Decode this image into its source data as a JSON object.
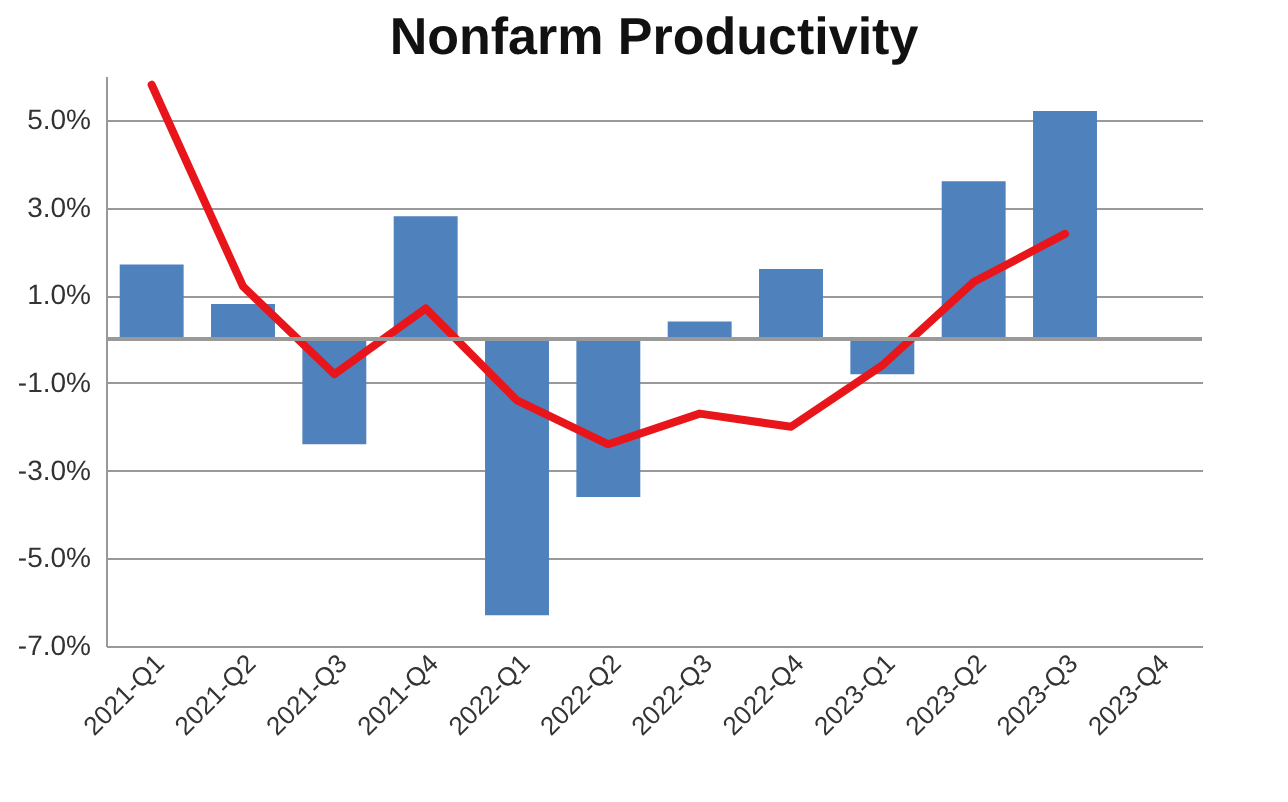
{
  "chart_data": {
    "type": "bar",
    "title": "Nonfarm Productivity",
    "categories": [
      "2021-Q1",
      "2021-Q2",
      "2021-Q3",
      "2021-Q4",
      "2022-Q1",
      "2022-Q2",
      "2022-Q3",
      "2022-Q4",
      "2023-Q1",
      "2023-Q2",
      "2023-Q3",
      "2023-Q4"
    ],
    "series": [
      {
        "color": "#4f81bd",
        "values": [
          1.7,
          0.8,
          -2.4,
          2.8,
          -6.3,
          -3.6,
          0.4,
          1.6,
          -0.8,
          3.6,
          5.2,
          null
        ]
      },
      {
        "type": "line",
        "color": "#e8161b",
        "values": [
          5.8,
          1.2,
          -0.8,
          0.7,
          -1.4,
          -2.4,
          -1.7,
          -2.0,
          -0.6,
          1.3,
          2.4,
          null
        ]
      }
    ],
    "ylim": [
      -7,
      6
    ],
    "yticks": [
      {
        "value": -7,
        "label": "-7.0%"
      },
      {
        "value": -5,
        "label": "-5.0%"
      },
      {
        "value": -3,
        "label": "-3.0%"
      },
      {
        "value": -1,
        "label": "-1.0%"
      },
      {
        "value": 1,
        "label": "1.0%"
      },
      {
        "value": 3,
        "label": "3.0%"
      },
      {
        "value": 5,
        "label": "5.0%"
      }
    ],
    "ref_lines": [
      {
        "axis": "y",
        "value": 0,
        "color": "#999999"
      }
    ],
    "grid": "y"
  }
}
